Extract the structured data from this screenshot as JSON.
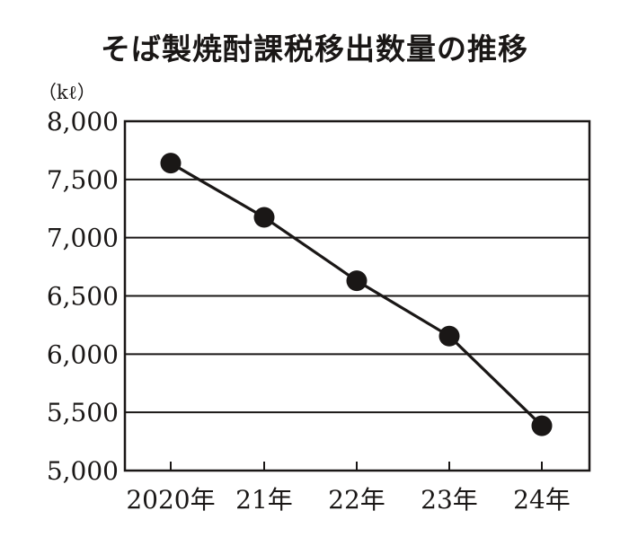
{
  "chart_data": {
    "type": "line",
    "title": "そば製焼酎課税移出数量の推移",
    "unit_label": "（kℓ）",
    "xlabel": "",
    "ylabel": "",
    "categories": [
      "2020年",
      "21年",
      "22年",
      "23年",
      "24年"
    ],
    "values": [
      7640,
      7175,
      6630,
      6155,
      5385
    ],
    "y_ticks": [
      5000,
      5500,
      6000,
      6500,
      7000,
      7500,
      8000
    ],
    "y_tick_labels": [
      "5,000",
      "5,500",
      "6,000",
      "6,500",
      "7,000",
      "7,500",
      "8,000"
    ],
    "ylim": [
      5000,
      8000
    ],
    "grid": true,
    "legend": "none",
    "colors": {
      "line": "#1a1716",
      "marker": "#1a1716",
      "grid": "#1a1716",
      "text": "#1a1716"
    }
  }
}
